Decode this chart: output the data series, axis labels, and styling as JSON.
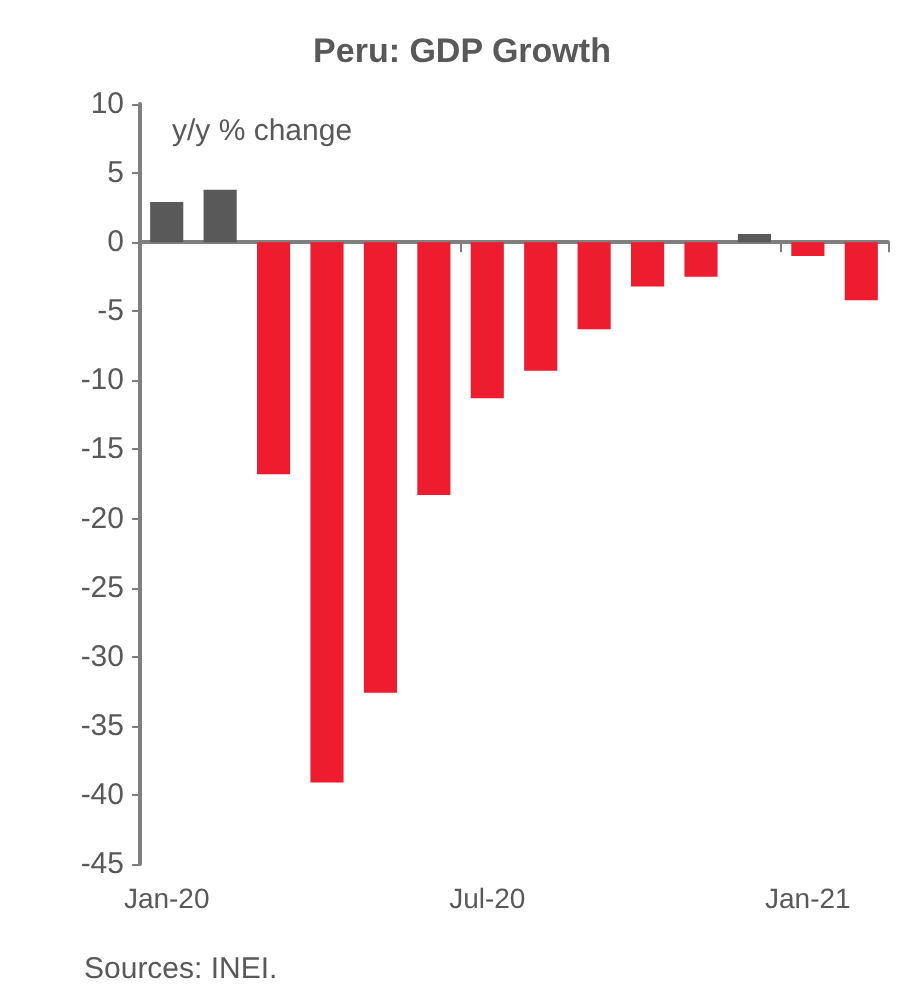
{
  "chart_data": {
    "type": "bar",
    "title": "Peru: GDP Growth",
    "ylabel": "y/y % change",
    "categories": [
      "Jan-20",
      null,
      null,
      null,
      null,
      null,
      "Jul-20",
      null,
      null,
      null,
      null,
      null,
      "Jan-21",
      null
    ],
    "values": [
      2.9,
      3.8,
      -16.8,
      -39.1,
      -32.6,
      -18.3,
      -11.3,
      -9.3,
      -6.3,
      -3.2,
      -2.5,
      0.6,
      -1.0,
      -4.2
    ],
    "colors": [
      "#595959",
      "#595959",
      "#ed1c2e",
      "#ed1c2e",
      "#ed1c2e",
      "#ed1c2e",
      "#ed1c2e",
      "#ed1c2e",
      "#ed1c2e",
      "#ed1c2e",
      "#ed1c2e",
      "#595959",
      "#ed1c2e",
      "#ed1c2e"
    ],
    "ylim": [
      -45,
      10
    ],
    "yticks": [
      -45,
      -40,
      -35,
      -30,
      -25,
      -20,
      -15,
      -10,
      -5,
      0,
      5,
      10
    ],
    "annotations": [
      "Sources: INEI."
    ]
  }
}
